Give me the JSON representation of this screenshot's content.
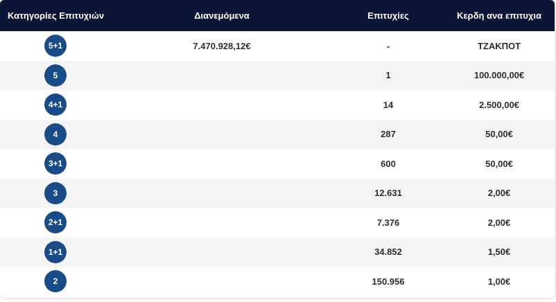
{
  "header": {
    "categories": "Κατηγορίες Επιτυχιών",
    "distributed": "Διανεμόμενα",
    "winners": "Επιτυχίες",
    "prize": "Κερδη ανα επιτυχια"
  },
  "colors": {
    "header_bg": "#0d1537",
    "badge_bg": "#194b86",
    "row_alt_bg": "#f4f4f6"
  },
  "rows": [
    {
      "category": "5+1",
      "distributed": "7.470.928,12€",
      "winners": "-",
      "prize": "ΤΖΑΚΠΟΤ"
    },
    {
      "category": "5",
      "distributed": "",
      "winners": "1",
      "prize": "100.000,00€"
    },
    {
      "category": "4+1",
      "distributed": "",
      "winners": "14",
      "prize": "2.500,00€"
    },
    {
      "category": "4",
      "distributed": "",
      "winners": "287",
      "prize": "50,00€"
    },
    {
      "category": "3+1",
      "distributed": "",
      "winners": "600",
      "prize": "50,00€"
    },
    {
      "category": "3",
      "distributed": "",
      "winners": "12.631",
      "prize": "2,00€"
    },
    {
      "category": "2+1",
      "distributed": "",
      "winners": "7.376",
      "prize": "2,00€"
    },
    {
      "category": "1+1",
      "distributed": "",
      "winners": "34.852",
      "prize": "1,50€"
    },
    {
      "category": "2",
      "distributed": "",
      "winners": "150.956",
      "prize": "1,00€"
    }
  ]
}
